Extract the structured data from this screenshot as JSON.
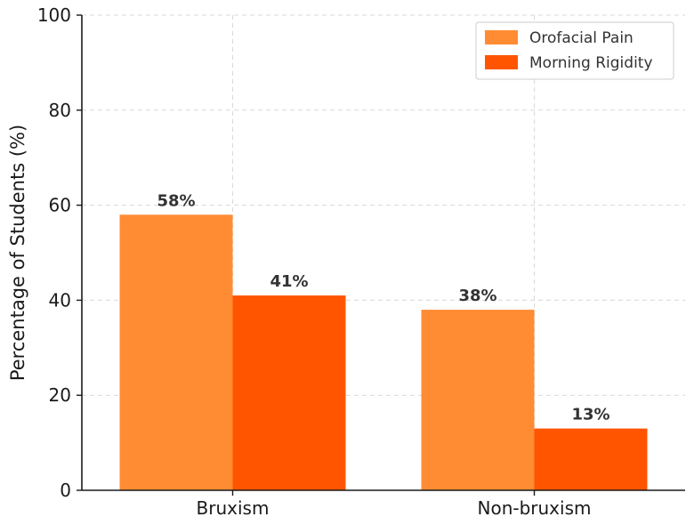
{
  "chart_data": {
    "type": "bar",
    "title": "",
    "xlabel": "",
    "ylabel": "Percentage of Students (%)",
    "ylim": [
      0,
      100
    ],
    "yticks": [
      0,
      20,
      40,
      60,
      80,
      100
    ],
    "categories": [
      "Bruxism",
      "Non-bruxism"
    ],
    "series": [
      {
        "name": "Orofacial Pain",
        "values": [
          58,
          38
        ],
        "labels": [
          "58%",
          "38%"
        ],
        "color": "#FF8C33"
      },
      {
        "name": "Morning Rigidity",
        "values": [
          41,
          13
        ],
        "labels": [
          "41%",
          "13%"
        ],
        "color": "#FF5500"
      }
    ],
    "grid": true,
    "legend": "top-right"
  }
}
